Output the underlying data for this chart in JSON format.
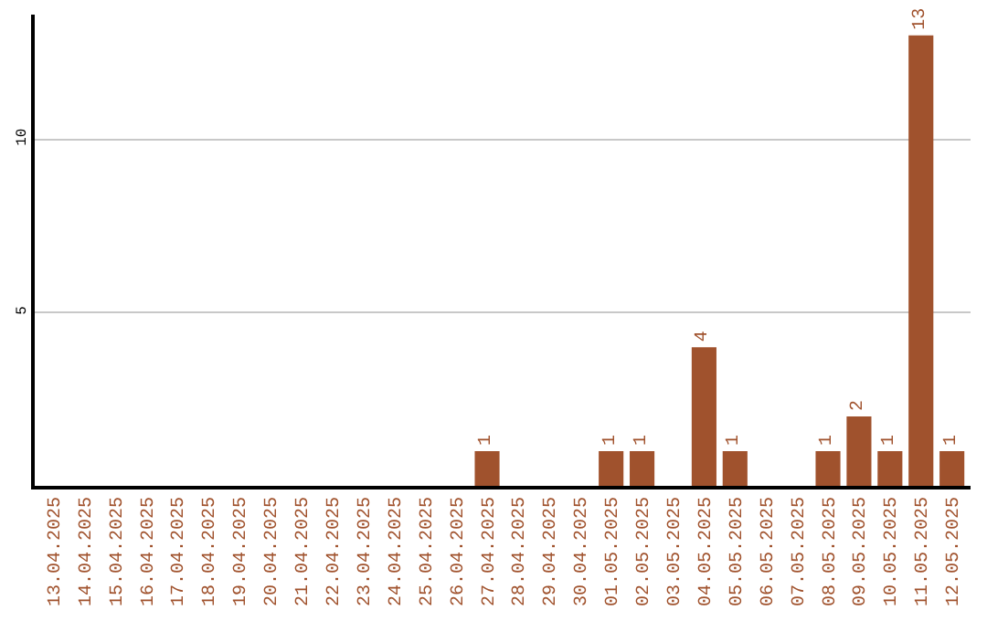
{
  "chart_data": {
    "type": "bar",
    "categories": [
      "13.04.2025",
      "14.04.2025",
      "15.04.2025",
      "16.04.2025",
      "17.04.2025",
      "18.04.2025",
      "19.04.2025",
      "20.04.2025",
      "21.04.2025",
      "22.04.2025",
      "23.04.2025",
      "24.04.2025",
      "25.04.2025",
      "26.04.2025",
      "27.04.2025",
      "28.04.2025",
      "29.04.2025",
      "30.04.2025",
      "01.05.2025",
      "02.05.2025",
      "03.05.2025",
      "04.05.2025",
      "05.05.2025",
      "06.05.2025",
      "07.05.2025",
      "08.05.2025",
      "09.05.2025",
      "10.05.2025",
      "11.05.2025",
      "12.05.2025"
    ],
    "values": [
      0,
      0,
      0,
      0,
      0,
      0,
      0,
      0,
      0,
      0,
      0,
      0,
      0,
      0,
      1,
      0,
      0,
      0,
      1,
      1,
      0,
      4,
      1,
      0,
      0,
      1,
      2,
      1,
      13,
      1
    ],
    "value_labels": [
      null,
      null,
      null,
      null,
      null,
      null,
      null,
      null,
      null,
      null,
      null,
      null,
      null,
      null,
      "1",
      null,
      null,
      null,
      "1",
      "1",
      null,
      "4",
      "1",
      null,
      null,
      "1",
      "2",
      "1",
      "13",
      "1"
    ],
    "color": "#a0522d",
    "ylim": [
      0,
      13.6
    ],
    "yticks": [
      5,
      10
    ],
    "grid": "y",
    "legend": false
  }
}
